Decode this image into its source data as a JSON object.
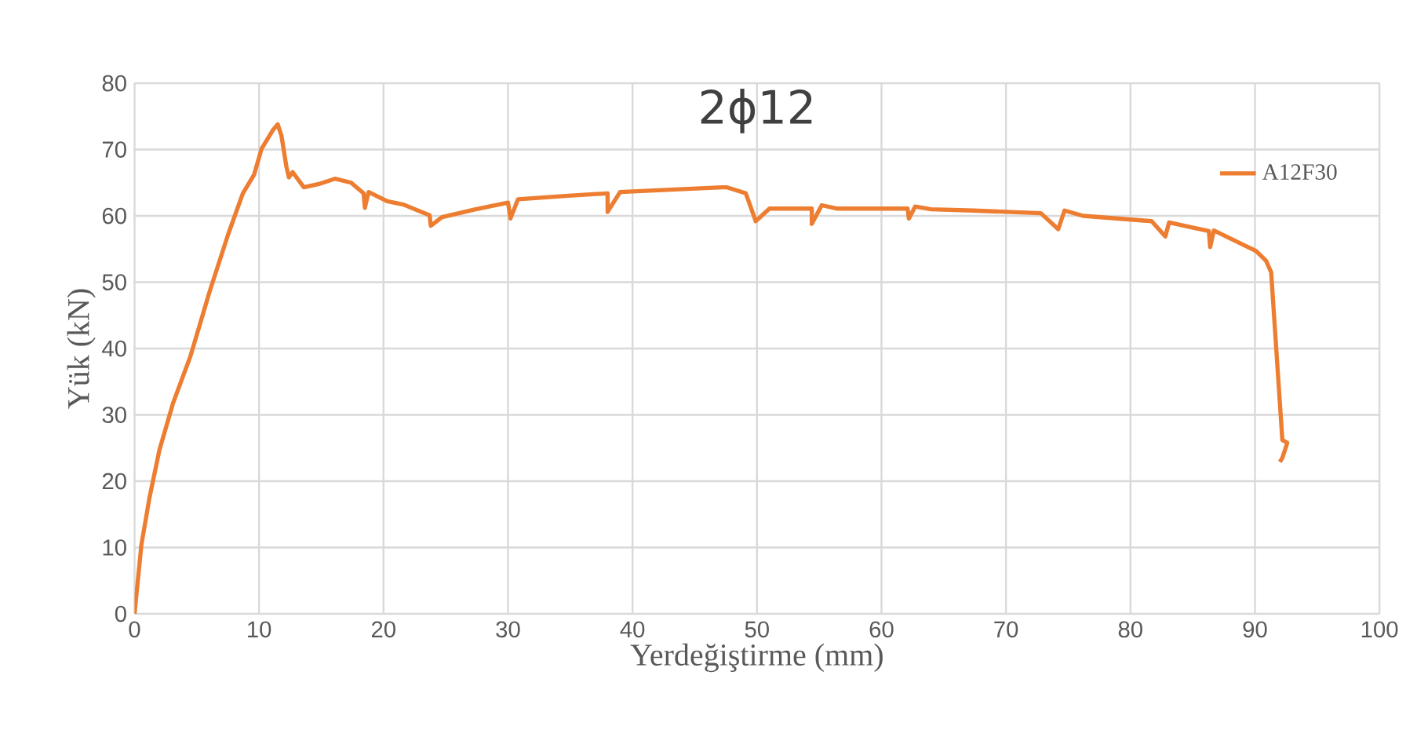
{
  "chart_data": {
    "type": "line",
    "title": "2ϕ12",
    "xlabel": "Yerdeğiştirme (mm)",
    "ylabel": "Yük (kN)",
    "xlim": [
      0,
      100
    ],
    "xticks": [
      0,
      10,
      20,
      30,
      40,
      50,
      60,
      70,
      80,
      90,
      100
    ],
    "ylim": [
      0,
      80
    ],
    "yticks": [
      0,
      10,
      20,
      30,
      40,
      50,
      60,
      70,
      80
    ],
    "grid": true,
    "legend": "top right",
    "marker": "none",
    "line_style": "solid",
    "series": [
      {
        "name": "A12F30",
        "color": "#ed7d31",
        "x": [
          0,
          0.55,
          1.2,
          2.0,
          3.1,
          4.5,
          6.0,
          7.5,
          8.7,
          9.6,
          10.2,
          11.1,
          11.5,
          11.8,
          12.2,
          12.4,
          12.7,
          13.6,
          14.8,
          16.1,
          17.4,
          18.4,
          18.5,
          18.8,
          20.3,
          21.6,
          23.7,
          23.8,
          24.7,
          27.4,
          30.0,
          30.2,
          30.8,
          34.6,
          38.0,
          38.0,
          39.0,
          47.2,
          47.6,
          49.1,
          49.9,
          51.0,
          54.4,
          54.4,
          55.2,
          56.4,
          62.1,
          62.2,
          62.7,
          64.0,
          67.4,
          72.8,
          74.2,
          74.7,
          76.2,
          81.7,
          82.8,
          83.1,
          86.3,
          86.4,
          86.7,
          90.1,
          90.9,
          91.3,
          92.2,
          92.6,
          92.2,
          92.0
        ],
        "values": [
          0,
          10.4,
          17.5,
          24.7,
          31.8,
          38.9,
          48.4,
          57.1,
          63.4,
          66.2,
          70.1,
          72.9,
          73.8,
          72.1,
          67.4,
          65.8,
          66.6,
          64.3,
          64.8,
          65.6,
          65.0,
          63.4,
          61.2,
          63.6,
          62.2,
          61.7,
          60.1,
          58.5,
          59.8,
          61.0,
          62.0,
          59.6,
          62.5,
          63.0,
          63.4,
          60.6,
          63.6,
          64.3,
          64.3,
          63.4,
          59.2,
          61.1,
          61.1,
          58.8,
          61.6,
          61.1,
          61.1,
          59.6,
          61.4,
          61.0,
          60.8,
          60.4,
          58.0,
          60.8,
          60.0,
          59.2,
          56.9,
          59.0,
          57.7,
          55.3,
          57.8,
          54.7,
          53.2,
          51.5,
          26.2,
          25.8,
          23.5,
          22.9
        ]
      }
    ]
  }
}
